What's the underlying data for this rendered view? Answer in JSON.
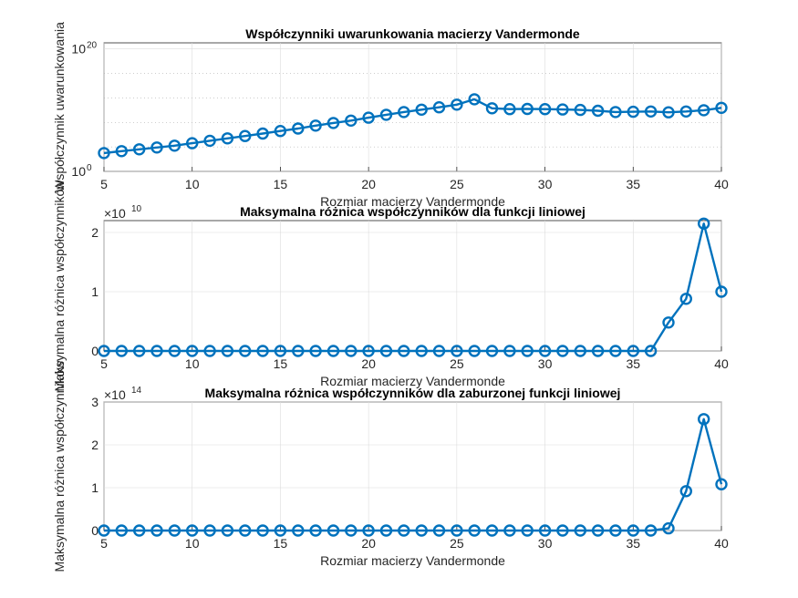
{
  "chart_data": [
    {
      "type": "line",
      "title": "Współczynniki uwarunkowania macierzy Vandermonde",
      "xlabel": "Rozmiar macierzy Vandermonde",
      "ylabel": "Współczynnik uwarunkowania",
      "yscale": "log",
      "xlim": [
        5,
        40
      ],
      "ylim": [
        1,
        1e+21
      ],
      "xticks": [
        "5",
        "10",
        "15",
        "20",
        "25",
        "30",
        "35",
        "40"
      ],
      "yticks": [
        {
          "base": "10",
          "exp": "0"
        },
        {
          "base": "10",
          "exp": "20"
        }
      ],
      "grid": true,
      "x": [
        5,
        6,
        7,
        8,
        9,
        10,
        11,
        12,
        13,
        14,
        15,
        16,
        17,
        18,
        19,
        20,
        21,
        22,
        23,
        24,
        25,
        26,
        27,
        28,
        29,
        30,
        31,
        32,
        33,
        34,
        35,
        36,
        37,
        38,
        39,
        40
      ],
      "y": [
        1000.0,
        2000.0,
        4000.0,
        8000.0,
        16000.0,
        40000.0,
        100000.0,
        250000.0,
        600000.0,
        1500000.0,
        4000000.0,
        10000000.0,
        30000000.0,
        80000000.0,
        200000000.0,
        600000000.0,
        1800000000.0,
        5000000000.0,
        12000000000.0,
        30000000000.0,
        80000000000.0,
        600000000000.0,
        20000000000.0,
        15000000000.0,
        16000000000.0,
        15000000000.0,
        13000000000.0,
        11000000000.0,
        8000000000.0,
        5000000000.0,
        5500000000.0,
        6000000000.0,
        4500000000.0,
        6000000000.0,
        10000000000.0,
        24000000000.0
      ],
      "y_display": [
        1000.0,
        2000.0,
        4000.0,
        8000.0,
        16000.0,
        40000.0,
        100000.0,
        250000.0,
        600000.0,
        1500000.0,
        4000000.0,
        10000000.0,
        30000000.0,
        80000000.0,
        200000000.0,
        600000000.0,
        1800000000.0,
        5000000000.0,
        12000000000.0,
        30000000000.0,
        80000000000.0,
        600000000000.0,
        20000000000.0,
        15000000000.0,
        16000000000.0,
        15000000000.0,
        13000000000.0,
        11000000000.0,
        8000000000.0,
        5000000000.0,
        5500000000.0,
        6000000000.0,
        4500000000.0,
        6000000000.0,
        10000000000.0,
        24000000000.0
      ],
      "color": "#0072BD"
    },
    {
      "type": "line",
      "title": "Maksymalna różnica współczynników dla funkcji liniowej",
      "xlabel": "Rozmiar macierzy Vandermonde",
      "ylabel": "Maksymalna różnica współczynników",
      "yscale": "linear",
      "exponent": {
        "base": "×10",
        "exp": "10"
      },
      "xlim": [
        5,
        40
      ],
      "ylim": [
        0,
        2.2
      ],
      "xticks": [
        "5",
        "10",
        "15",
        "20",
        "25",
        "30",
        "35",
        "40"
      ],
      "yticks": [
        "0",
        "1",
        "2"
      ],
      "grid": true,
      "x": [
        5,
        6,
        7,
        8,
        9,
        10,
        11,
        12,
        13,
        14,
        15,
        16,
        17,
        18,
        19,
        20,
        21,
        22,
        23,
        24,
        25,
        26,
        27,
        28,
        29,
        30,
        31,
        32,
        33,
        34,
        35,
        36,
        37,
        38,
        39,
        40
      ],
      "y": [
        0,
        0,
        0,
        0,
        0,
        0,
        0,
        0,
        0,
        0,
        0,
        0,
        0,
        0,
        0,
        0,
        0,
        0,
        0,
        0,
        0,
        0,
        0,
        0,
        0,
        0,
        0,
        0,
        0,
        0,
        0,
        0,
        0.48,
        0.88,
        2.15,
        1.0
      ],
      "color": "#0072BD"
    },
    {
      "type": "line",
      "title": "Maksymalna różnica współczynników dla zaburzonej funkcji liniowej",
      "xlabel": "Rozmiar macierzy Vandermonde",
      "ylabel": "Maksymalna różnica współczynników",
      "yscale": "linear",
      "exponent": {
        "base": "×10",
        "exp": "14"
      },
      "xlim": [
        5,
        40
      ],
      "ylim": [
        0,
        3
      ],
      "xticks": [
        "5",
        "10",
        "15",
        "20",
        "25",
        "30",
        "35",
        "40"
      ],
      "yticks": [
        "0",
        "1",
        "2",
        "3"
      ],
      "grid": true,
      "x": [
        5,
        6,
        7,
        8,
        9,
        10,
        11,
        12,
        13,
        14,
        15,
        16,
        17,
        18,
        19,
        20,
        21,
        22,
        23,
        24,
        25,
        26,
        27,
        28,
        29,
        30,
        31,
        32,
        33,
        34,
        35,
        36,
        37,
        38,
        39,
        40
      ],
      "y": [
        0,
        0,
        0,
        0,
        0,
        0,
        0,
        0,
        0,
        0,
        0,
        0,
        0,
        0,
        0,
        0,
        0,
        0,
        0,
        0,
        0,
        0,
        0,
        0,
        0,
        0,
        0,
        0,
        0,
        0,
        0,
        0,
        0.05,
        0.92,
        2.6,
        1.08
      ],
      "color": "#0072BD"
    }
  ]
}
